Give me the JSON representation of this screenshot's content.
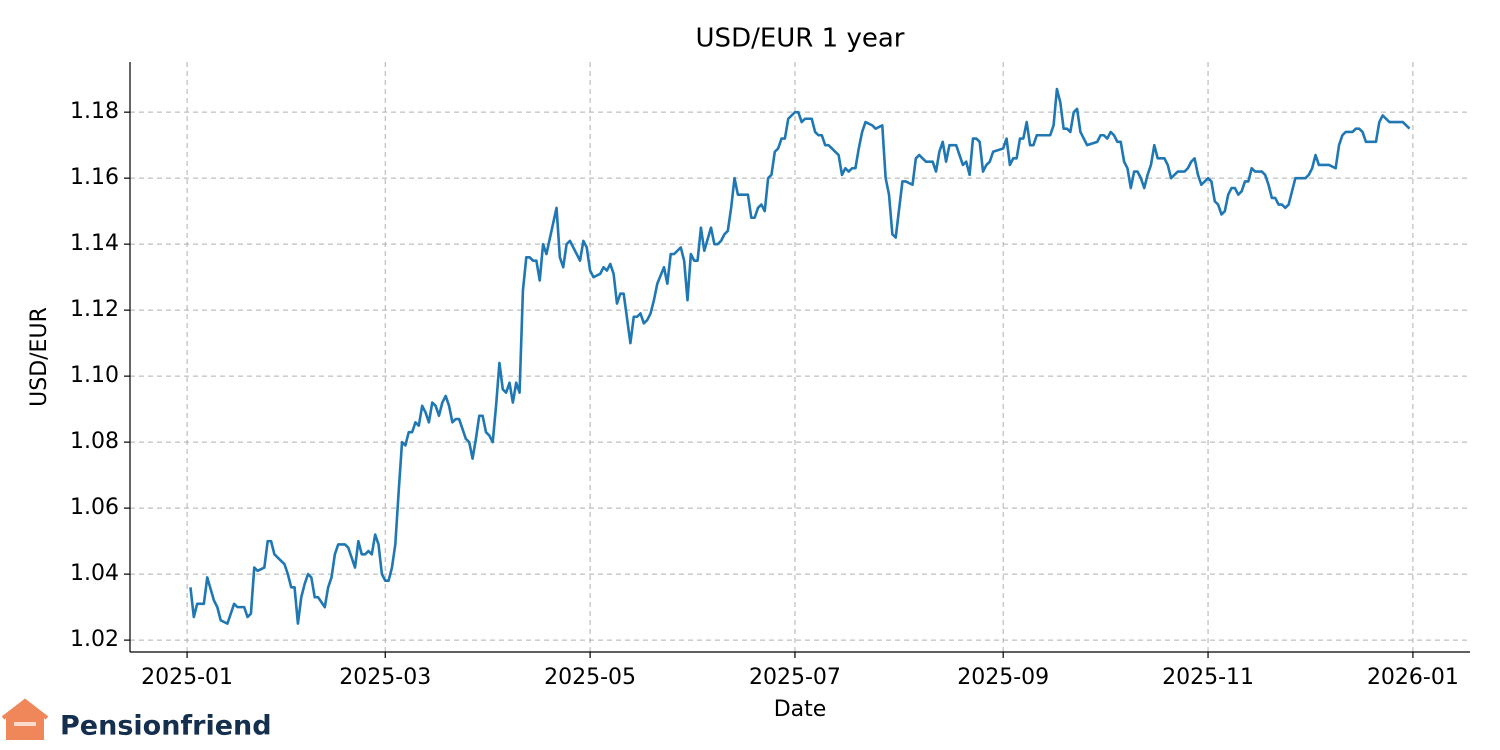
{
  "chart_data": {
    "type": "line",
    "title": "USD/EUR 1 year",
    "xlabel": "Date",
    "ylabel": "USD/EUR",
    "xlim": [
      "2024-12-15",
      "2026-01-18"
    ],
    "xticks": [
      "2025-01",
      "2025-03",
      "2025-05",
      "2025-07",
      "2025-09",
      "2025-11",
      "2026-01"
    ],
    "ylim": [
      1.0164,
      1.1952
    ],
    "yticks": [
      1.02,
      1.04,
      1.06,
      1.08,
      {
        "value": 1.1,
        "label": "1.10"
      },
      1.12,
      1.14,
      1.16,
      1.18
    ],
    "grid": true,
    "log_scale": false,
    "series": [
      {
        "name": "USD/EUR",
        "color": "#1f77b4",
        "x": [
          "2025-01-02",
          "2025-01-03",
          "2025-01-04",
          "2025-01-06",
          "2025-01-07",
          "2025-01-09",
          "2025-01-10",
          "2025-01-11",
          "2025-01-13",
          "2025-01-15",
          "2025-01-16",
          "2025-01-18",
          "2025-01-19",
          "2025-01-20",
          "2025-01-21",
          "2025-01-22",
          "2025-01-24",
          "2025-01-25",
          "2025-01-26",
          "2025-01-27",
          "2025-01-29",
          "2025-01-30",
          "2025-01-31",
          "2025-02-01",
          "2025-02-02",
          "2025-02-03",
          "2025-02-04",
          "2025-02-05",
          "2025-02-06",
          "2025-02-07",
          "2025-02-08",
          "2025-02-09",
          "2025-02-11",
          "2025-02-12",
          "2025-02-13",
          "2025-02-14",
          "2025-02-15",
          "2025-02-17",
          "2025-02-18",
          "2025-02-20",
          "2025-02-21",
          "2025-02-22",
          "2025-02-23",
          "2025-02-24",
          "2025-02-25",
          "2025-02-26",
          "2025-02-27",
          "2025-02-28",
          "2025-03-01",
          "2025-03-02",
          "2025-03-03",
          "2025-03-04",
          "2025-03-05",
          "2025-03-06",
          "2025-03-07",
          "2025-03-08",
          "2025-03-09",
          "2025-03-10",
          "2025-03-11",
          "2025-03-12",
          "2025-03-13",
          "2025-03-14",
          "2025-03-15",
          "2025-03-16",
          "2025-03-17",
          "2025-03-18",
          "2025-03-19",
          "2025-03-20",
          "2025-03-21",
          "2025-03-22",
          "2025-03-23",
          "2025-03-25",
          "2025-03-26",
          "2025-03-27",
          "2025-03-28",
          "2025-03-29",
          "2025-03-30",
          "2025-03-31",
          "2025-04-01",
          "2025-04-02",
          "2025-04-03",
          "2025-04-04",
          "2025-04-05",
          "2025-04-06",
          "2025-04-07",
          "2025-04-08",
          "2025-04-09",
          "2025-04-10",
          "2025-04-11",
          "2025-04-12",
          "2025-04-13",
          "2025-04-14",
          "2025-04-15",
          "2025-04-16",
          "2025-04-17",
          "2025-04-18",
          "2025-04-21",
          "2025-04-22",
          "2025-04-23",
          "2025-04-24",
          "2025-04-25",
          "2025-04-28",
          "2025-04-29",
          "2025-04-30",
          "2025-05-01",
          "2025-05-02",
          "2025-05-04",
          "2025-05-05",
          "2025-05-06",
          "2025-05-07",
          "2025-05-08",
          "2025-05-09",
          "2025-05-10",
          "2025-05-11",
          "2025-05-13",
          "2025-05-14",
          "2025-05-15",
          "2025-05-16",
          "2025-05-17",
          "2025-05-18",
          "2025-05-19",
          "2025-05-20",
          "2025-05-21",
          "2025-05-23",
          "2025-05-24",
          "2025-05-25",
          "2025-05-26",
          "2025-05-27",
          "2025-05-28",
          "2025-05-29",
          "2025-05-30",
          "2025-05-31",
          "2025-06-01",
          "2025-06-02",
          "2025-06-03",
          "2025-06-04",
          "2025-06-06",
          "2025-06-07",
          "2025-06-08",
          "2025-06-09",
          "2025-06-10",
          "2025-06-11",
          "2025-06-12",
          "2025-06-13",
          "2025-06-14",
          "2025-06-15",
          "2025-06-17",
          "2025-06-18",
          "2025-06-19",
          "2025-06-20",
          "2025-06-21",
          "2025-06-22",
          "2025-06-23",
          "2025-06-24",
          "2025-06-25",
          "2025-06-26",
          "2025-06-27",
          "2025-06-28",
          "2025-06-29",
          "2025-07-01",
          "2025-07-02",
          "2025-07-03",
          "2025-07-04",
          "2025-07-06",
          "2025-07-07",
          "2025-07-08",
          "2025-07-09",
          "2025-07-10",
          "2025-07-11",
          "2025-07-12",
          "2025-07-14",
          "2025-07-15",
          "2025-07-16",
          "2025-07-17",
          "2025-07-18",
          "2025-07-19",
          "2025-07-20",
          "2025-07-21",
          "2025-07-22",
          "2025-07-24",
          "2025-07-25",
          "2025-07-27",
          "2025-07-28",
          "2025-07-29",
          "2025-07-30",
          "2025-07-31",
          "2025-08-02",
          "2025-08-03",
          "2025-08-05",
          "2025-08-06",
          "2025-08-07",
          "2025-08-09",
          "2025-08-11",
          "2025-08-12",
          "2025-08-13",
          "2025-08-14",
          "2025-08-15",
          "2025-08-16",
          "2025-08-18",
          "2025-08-19",
          "2025-08-20",
          "2025-08-21",
          "2025-08-22",
          "2025-08-23",
          "2025-08-24",
          "2025-08-25",
          "2025-08-26",
          "2025-08-27",
          "2025-08-28",
          "2025-08-29",
          "2025-09-01",
          "2025-09-02",
          "2025-09-03",
          "2025-09-04",
          "2025-09-05",
          "2025-09-06",
          "2025-09-07",
          "2025-09-08",
          "2025-09-09",
          "2025-09-10",
          "2025-09-11",
          "2025-09-14",
          "2025-09-15",
          "2025-09-16",
          "2025-09-17",
          "2025-09-18",
          "2025-09-19",
          "2025-09-20",
          "2025-09-21",
          "2025-09-22",
          "2025-09-23",
          "2025-09-24",
          "2025-09-25",
          "2025-09-26",
          "2025-09-29",
          "2025-09-30",
          "2025-10-01",
          "2025-10-02",
          "2025-10-03",
          "2025-10-04",
          "2025-10-05",
          "2025-10-06",
          "2025-10-07",
          "2025-10-08",
          "2025-10-09",
          "2025-10-10",
          "2025-10-11",
          "2025-10-12",
          "2025-10-13",
          "2025-10-14",
          "2025-10-15",
          "2025-10-16",
          "2025-10-17",
          "2025-10-19",
          "2025-10-20",
          "2025-10-21",
          "2025-10-22",
          "2025-10-23",
          "2025-10-25",
          "2025-10-26",
          "2025-10-27",
          "2025-10-28",
          "2025-10-29",
          "2025-10-30",
          "2025-11-01",
          "2025-11-02",
          "2025-11-03",
          "2025-11-04",
          "2025-11-05",
          "2025-11-06",
          "2025-11-07",
          "2025-11-08",
          "2025-11-09",
          "2025-11-10",
          "2025-11-11",
          "2025-11-12",
          "2025-11-13",
          "2025-11-14",
          "2025-11-15",
          "2025-11-17",
          "2025-11-18",
          "2025-11-19",
          "2025-11-20",
          "2025-11-21",
          "2025-11-22",
          "2025-11-23",
          "2025-11-24",
          "2025-11-25",
          "2025-11-26",
          "2025-11-27",
          "2025-11-28",
          "2025-11-30",
          "2025-12-01",
          "2025-12-02",
          "2025-12-03",
          "2025-12-04",
          "2025-12-06",
          "2025-12-07",
          "2025-12-09",
          "2025-12-10",
          "2025-12-11",
          "2025-12-12",
          "2025-12-13",
          "2025-12-14",
          "2025-12-15",
          "2025-12-16",
          "2025-12-17",
          "2025-12-18",
          "2025-12-19",
          "2025-12-21",
          "2025-12-22",
          "2025-12-23",
          "2025-12-24",
          "2025-12-25",
          "2025-12-26",
          "2025-12-27",
          "2025-12-28",
          "2025-12-29",
          "2025-12-31"
        ],
        "values": [
          1.036,
          1.027,
          1.031,
          1.031,
          1.039,
          1.032,
          1.03,
          1.026,
          1.025,
          1.031,
          1.03,
          1.03,
          1.027,
          1.028,
          1.042,
          1.041,
          1.042,
          1.05,
          1.05,
          1.046,
          1.044,
          1.043,
          1.04,
          1.036,
          1.036,
          1.025,
          1.033,
          1.037,
          1.04,
          1.039,
          1.033,
          1.033,
          1.03,
          1.036,
          1.039,
          1.046,
          1.049,
          1.049,
          1.048,
          1.042,
          1.05,
          1.046,
          1.046,
          1.047,
          1.046,
          1.052,
          1.049,
          1.04,
          1.038,
          1.038,
          1.042,
          1.049,
          1.065,
          1.08,
          1.079,
          1.083,
          1.083,
          1.086,
          1.085,
          1.091,
          1.089,
          1.086,
          1.092,
          1.091,
          1.088,
          1.092,
          1.094,
          1.091,
          1.086,
          1.087,
          1.087,
          1.081,
          1.08,
          1.075,
          1.081,
          1.088,
          1.088,
          1.083,
          1.082,
          1.08,
          1.091,
          1.104,
          1.096,
          1.095,
          1.098,
          1.092,
          1.098,
          1.095,
          1.126,
          1.136,
          1.136,
          1.135,
          1.135,
          1.129,
          1.14,
          1.137,
          1.151,
          1.136,
          1.133,
          1.14,
          1.141,
          1.135,
          1.141,
          1.139,
          1.132,
          1.13,
          1.131,
          1.133,
          1.132,
          1.134,
          1.131,
          1.122,
          1.125,
          1.125,
          1.11,
          1.118,
          1.118,
          1.119,
          1.116,
          1.117,
          1.119,
          1.123,
          1.128,
          1.133,
          1.128,
          1.137,
          1.137,
          1.138,
          1.139,
          1.135,
          1.123,
          1.137,
          1.135,
          1.135,
          1.145,
          1.138,
          1.145,
          1.14,
          1.14,
          1.141,
          1.143,
          1.144,
          1.151,
          1.16,
          1.155,
          1.155,
          1.155,
          1.148,
          1.148,
          1.151,
          1.152,
          1.15,
          1.16,
          1.161,
          1.168,
          1.169,
          1.172,
          1.172,
          1.178,
          1.18,
          1.18,
          1.177,
          1.178,
          1.178,
          1.174,
          1.173,
          1.173,
          1.17,
          1.17,
          1.169,
          1.167,
          1.161,
          1.163,
          1.162,
          1.163,
          1.163,
          1.169,
          1.174,
          1.177,
          1.176,
          1.175,
          1.176,
          1.16,
          1.155,
          1.143,
          1.142,
          1.159,
          1.159,
          1.158,
          1.166,
          1.167,
          1.165,
          1.165,
          1.162,
          1.168,
          1.171,
          1.165,
          1.17,
          1.17,
          1.167,
          1.164,
          1.165,
          1.161,
          1.172,
          1.172,
          1.171,
          1.162,
          1.164,
          1.165,
          1.168,
          1.169,
          1.172,
          1.164,
          1.166,
          1.166,
          1.172,
          1.172,
          1.177,
          1.17,
          1.17,
          1.173,
          1.173,
          1.173,
          1.176,
          1.187,
          1.183,
          1.175,
          1.175,
          1.174,
          1.18,
          1.181,
          1.174,
          1.172,
          1.17,
          1.171,
          1.173,
          1.173,
          1.172,
          1.174,
          1.173,
          1.171,
          1.171,
          1.165,
          1.163,
          1.157,
          1.162,
          1.162,
          1.16,
          1.157,
          1.161,
          1.164,
          1.17,
          1.166,
          1.166,
          1.164,
          1.16,
          1.161,
          1.162,
          1.162,
          1.163,
          1.165,
          1.166,
          1.161,
          1.158,
          1.16,
          1.159,
          1.153,
          1.152,
          1.149,
          1.15,
          1.155,
          1.157,
          1.157,
          1.155,
          1.156,
          1.159,
          1.159,
          1.163,
          1.162,
          1.162,
          1.161,
          1.158,
          1.154,
          1.154,
          1.152,
          1.152,
          1.151,
          1.152,
          1.156,
          1.16,
          1.16,
          1.16,
          1.161,
          1.163,
          1.167,
          1.164,
          1.164,
          1.164,
          1.163,
          1.17,
          1.173,
          1.174,
          1.174,
          1.174,
          1.175,
          1.175,
          1.174,
          1.171,
          1.171,
          1.171,
          1.177,
          1.179,
          1.178,
          1.177,
          1.177,
          1.177,
          1.177,
          1.177,
          1.175
        ]
      }
    ]
  },
  "watermark": "Pensionfriend"
}
